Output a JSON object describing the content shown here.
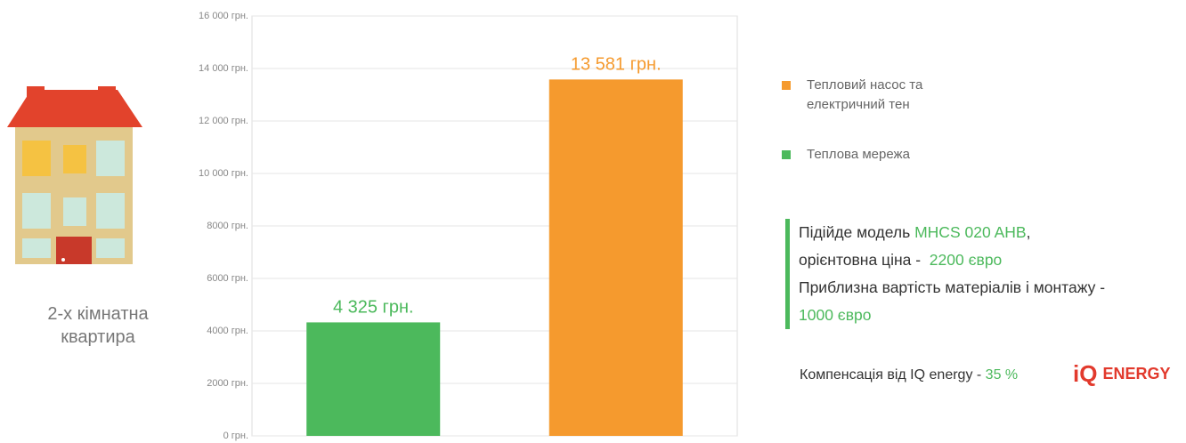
{
  "chart_data": {
    "type": "bar",
    "categories": [
      null,
      null
    ],
    "series": [
      {
        "name": "Теплова мережа",
        "color": "#4cb95c",
        "values": [
          4325,
          null
        ],
        "value_labels": [
          "4 325 грн.",
          null
        ]
      },
      {
        "name": "Тепловий насос та електричний тен",
        "color": "#f59a2e",
        "values": [
          null,
          13581
        ],
        "value_labels": [
          null,
          "13 581 грн."
        ]
      }
    ],
    "ylim": [
      0,
      16000
    ],
    "yticks": [
      {
        "value": 0,
        "label": "0 грн."
      },
      {
        "value": 2000,
        "label": "2000 грн."
      },
      {
        "value": 4000,
        "label": "4000 грн."
      },
      {
        "value": 6000,
        "label": "6000 грн."
      },
      {
        "value": 8000,
        "label": "8000 грн."
      },
      {
        "value": 10000,
        "label": "10 000 грн."
      },
      {
        "value": 12000,
        "label": "12 000 грн."
      },
      {
        "value": 14000,
        "label": "14 000 грн."
      },
      {
        "value": 16000,
        "label": "16 000 грн."
      }
    ],
    "grid": true
  },
  "caption": "2-х кімнатна квартира",
  "info": {
    "model_prefix": "Підійде модель",
    "model": "MHCS 020 AHB",
    "model_suffix": ",",
    "price_prefix": "орієнтовна ціна -",
    "price": "2200 євро",
    "install_prefix": "Приблизна вартість матеріалів і монтажу -",
    "install": "1000 євро",
    "compensation_prefix": "Компенсація від IQ energy -",
    "compensation": "35 %"
  },
  "logo": {
    "mark": "iQ",
    "name": "ENERGY"
  }
}
